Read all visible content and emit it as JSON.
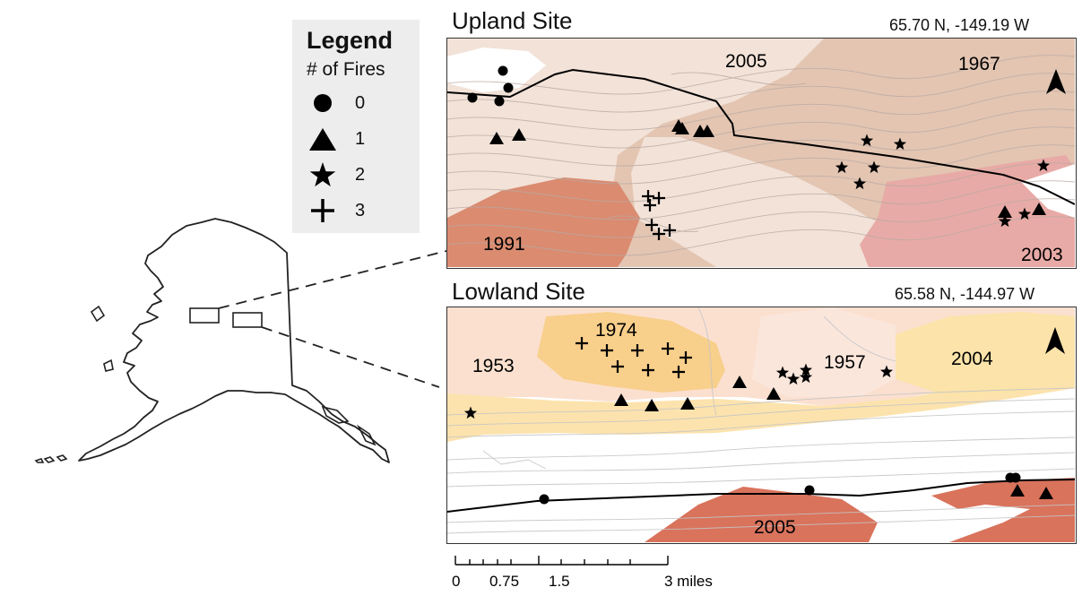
{
  "legend": {
    "title": "Legend",
    "subtitle": "# of Fires",
    "items": [
      {
        "symbol": "circle",
        "label": "0"
      },
      {
        "symbol": "triangle",
        "label": "1"
      },
      {
        "symbol": "star",
        "label": "2"
      },
      {
        "symbol": "plus",
        "label": "3"
      }
    ]
  },
  "upland": {
    "title": "Upland Site",
    "coords": "65.70 N, -149.19 W",
    "fire_years": [
      "2005",
      "1967",
      "1991",
      "2003"
    ],
    "colors": {
      "y2005": "#f1dfd5",
      "y1967": "#e3c3b0",
      "y1991": "#d98a6f",
      "y2003": "#e8a9a6"
    }
  },
  "lowland": {
    "title": "Lowland Site",
    "coords": "65.58 N, -144.97 W",
    "fire_years": [
      "1974",
      "1953",
      "1957",
      "2004",
      "2005"
    ],
    "colors": {
      "y1974": "#f7cf8a",
      "y1953": "#fbe0cf",
      "y1957": "#fbe3d7",
      "y2004": "#fbe1a8",
      "y2005": "#d9735c"
    }
  },
  "scale_bar": {
    "ticks": [
      "0",
      "0.75",
      "1.5",
      "3 miles"
    ]
  }
}
